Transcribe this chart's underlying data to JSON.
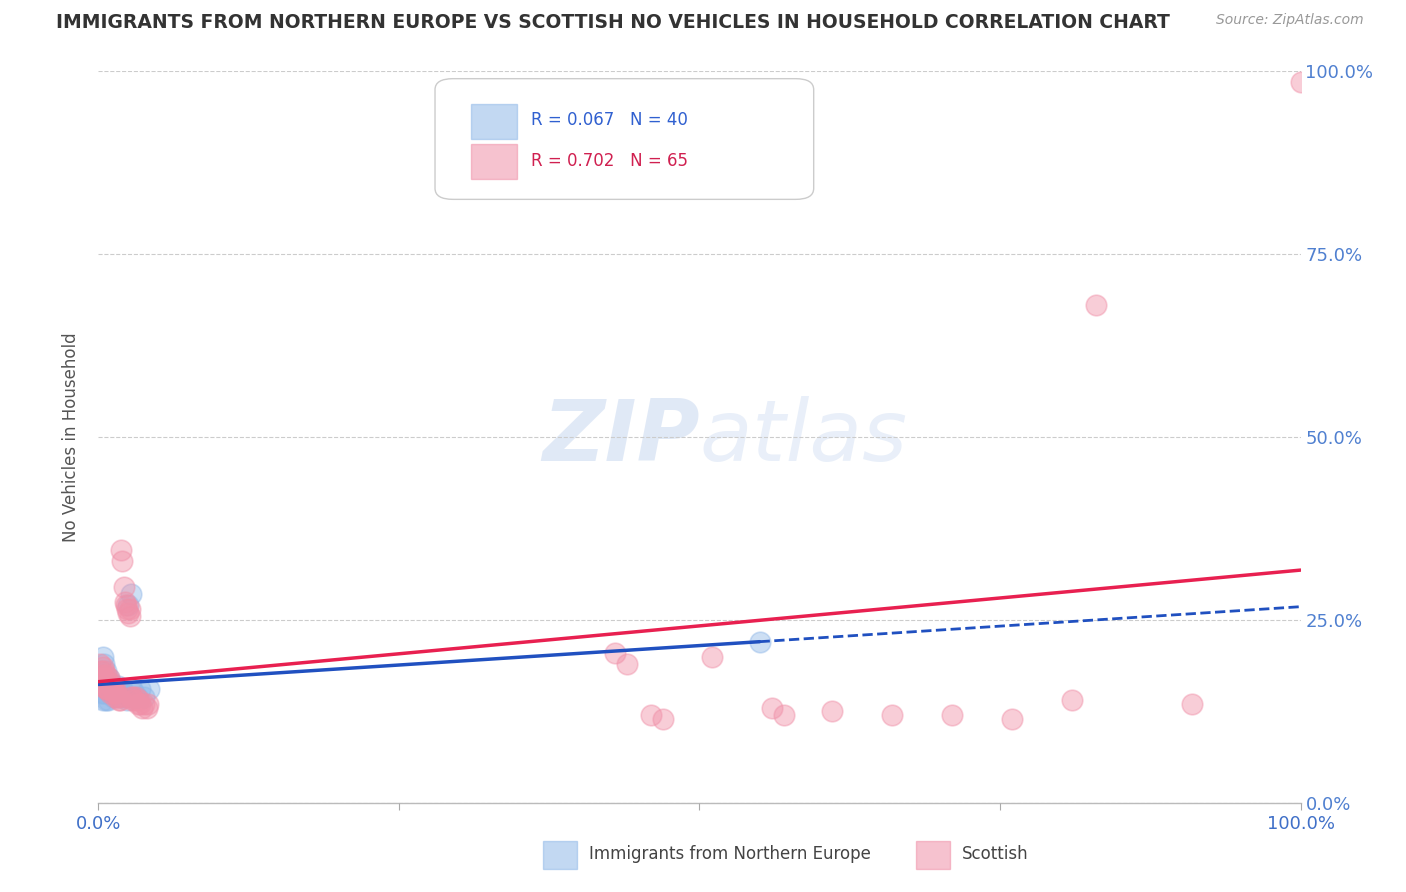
{
  "title": "IMMIGRANTS FROM NORTHERN EUROPE VS SCOTTISH NO VEHICLES IN HOUSEHOLD CORRELATION CHART",
  "source": "Source: ZipAtlas.com",
  "ylabel": "No Vehicles in Household",
  "watermark": "ZIPatlas",
  "xlim": [
    0,
    1.0
  ],
  "ylim": [
    0,
    1.0
  ],
  "ytick_labels": [
    "0.0%",
    "25.0%",
    "50.0%",
    "75.0%",
    "100.0%"
  ],
  "ytick_positions": [
    0.0,
    0.25,
    0.5,
    0.75,
    1.0
  ],
  "background_color": "#ffffff",
  "grid_color": "#cccccc",
  "blue_color": "#90b8e8",
  "pink_color": "#f090a8",
  "blue_line_color": "#2050c0",
  "pink_line_color": "#e82050",
  "right_ytick_color": "#5080d0",
  "blue_scatter": [
    [
      0.002,
      0.18
    ],
    [
      0.003,
      0.17
    ],
    [
      0.003,
      0.15
    ],
    [
      0.004,
      0.2
    ],
    [
      0.004,
      0.16
    ],
    [
      0.004,
      0.14
    ],
    [
      0.005,
      0.19
    ],
    [
      0.005,
      0.17
    ],
    [
      0.005,
      0.15
    ],
    [
      0.006,
      0.18
    ],
    [
      0.006,
      0.16
    ],
    [
      0.006,
      0.14
    ],
    [
      0.007,
      0.165
    ],
    [
      0.007,
      0.155
    ],
    [
      0.008,
      0.16
    ],
    [
      0.008,
      0.14
    ],
    [
      0.009,
      0.17
    ],
    [
      0.009,
      0.155
    ],
    [
      0.01,
      0.165
    ],
    [
      0.01,
      0.15
    ],
    [
      0.012,
      0.16
    ],
    [
      0.012,
      0.145
    ],
    [
      0.014,
      0.155
    ],
    [
      0.015,
      0.15
    ],
    [
      0.016,
      0.16
    ],
    [
      0.017,
      0.145
    ],
    [
      0.018,
      0.155
    ],
    [
      0.019,
      0.15
    ],
    [
      0.02,
      0.155
    ],
    [
      0.022,
      0.145
    ],
    [
      0.024,
      0.14
    ],
    [
      0.025,
      0.27
    ],
    [
      0.027,
      0.285
    ],
    [
      0.028,
      0.155
    ],
    [
      0.03,
      0.15
    ],
    [
      0.032,
      0.145
    ],
    [
      0.035,
      0.155
    ],
    [
      0.038,
      0.145
    ],
    [
      0.042,
      0.155
    ],
    [
      0.55,
      0.22
    ]
  ],
  "pink_scatter": [
    [
      0.001,
      0.19
    ],
    [
      0.002,
      0.18
    ],
    [
      0.002,
      0.165
    ],
    [
      0.003,
      0.175
    ],
    [
      0.003,
      0.16
    ],
    [
      0.004,
      0.185
    ],
    [
      0.004,
      0.17
    ],
    [
      0.005,
      0.18
    ],
    [
      0.005,
      0.165
    ],
    [
      0.006,
      0.175
    ],
    [
      0.006,
      0.155
    ],
    [
      0.007,
      0.165
    ],
    [
      0.007,
      0.155
    ],
    [
      0.008,
      0.165
    ],
    [
      0.008,
      0.155
    ],
    [
      0.009,
      0.17
    ],
    [
      0.009,
      0.155
    ],
    [
      0.01,
      0.165
    ],
    [
      0.01,
      0.15
    ],
    [
      0.011,
      0.16
    ],
    [
      0.012,
      0.155
    ],
    [
      0.013,
      0.15
    ],
    [
      0.014,
      0.155
    ],
    [
      0.014,
      0.145
    ],
    [
      0.015,
      0.15
    ],
    [
      0.016,
      0.145
    ],
    [
      0.017,
      0.14
    ],
    [
      0.018,
      0.145
    ],
    [
      0.018,
      0.14
    ],
    [
      0.019,
      0.345
    ],
    [
      0.02,
      0.33
    ],
    [
      0.021,
      0.295
    ],
    [
      0.022,
      0.275
    ],
    [
      0.023,
      0.27
    ],
    [
      0.024,
      0.265
    ],
    [
      0.025,
      0.26
    ],
    [
      0.026,
      0.265
    ],
    [
      0.026,
      0.255
    ],
    [
      0.027,
      0.145
    ],
    [
      0.028,
      0.14
    ],
    [
      0.029,
      0.145
    ],
    [
      0.03,
      0.14
    ],
    [
      0.031,
      0.145
    ],
    [
      0.033,
      0.135
    ],
    [
      0.034,
      0.14
    ],
    [
      0.035,
      0.135
    ],
    [
      0.036,
      0.13
    ],
    [
      0.038,
      0.135
    ],
    [
      0.04,
      0.13
    ],
    [
      0.041,
      0.135
    ],
    [
      0.43,
      0.205
    ],
    [
      0.44,
      0.19
    ],
    [
      0.46,
      0.12
    ],
    [
      0.47,
      0.115
    ],
    [
      0.51,
      0.2
    ],
    [
      0.56,
      0.13
    ],
    [
      0.57,
      0.12
    ],
    [
      0.61,
      0.125
    ],
    [
      0.66,
      0.12
    ],
    [
      0.71,
      0.12
    ],
    [
      0.76,
      0.115
    ],
    [
      0.81,
      0.14
    ],
    [
      0.83,
      0.68
    ],
    [
      0.91,
      0.135
    ],
    [
      1.0,
      0.985
    ]
  ]
}
